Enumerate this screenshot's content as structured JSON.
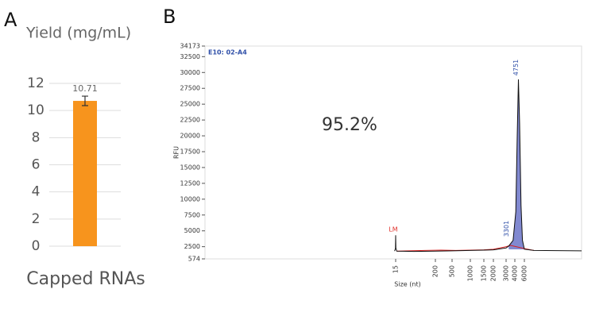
{
  "chart_data": [
    {
      "type": "bar",
      "panel": "A",
      "title": "Yield (mg/mL)",
      "categories": [
        "Capped RNAs"
      ],
      "values": [
        10.71
      ],
      "errors": [
        0.35
      ],
      "value_labels": [
        "10.71"
      ],
      "color": "#f7941d",
      "ylim": [
        0,
        12
      ],
      "yticks": [
        0,
        2,
        4,
        6,
        8,
        10,
        12
      ],
      "grid": true
    },
    {
      "type": "line",
      "panel": "B",
      "sample": "E10: 02-A4",
      "annotation": "95.2%",
      "xlabel": "Size (nt)",
      "ylabel": "RFU",
      "xticks": [
        15,
        200,
        500,
        1000,
        1500,
        2000,
        3000,
        4000,
        6000
      ],
      "ylim": [
        574,
        34173
      ],
      "yticks": [
        574,
        2500,
        5000,
        7500,
        10000,
        12500,
        15000,
        17500,
        20000,
        22500,
        25000,
        27500,
        30000,
        32500,
        34173
      ],
      "peak_labels": [
        {
          "x": 15,
          "label": "LM",
          "color": "#e0312b"
        },
        {
          "x": 3301,
          "label": "3301",
          "color": "#2f4fa8"
        },
        {
          "x": 4751,
          "label": "4751",
          "color": "#2f4fa8"
        }
      ],
      "series": [
        {
          "color": "#6b74c8",
          "area": true,
          "x": [
            3301,
            3800,
            4200,
            4500,
            4751,
            5000,
            5300,
            5600,
            6000
          ],
          "values": [
            2600,
            3500,
            8000,
            20000,
            28900,
            22000,
            9000,
            3500,
            2100
          ]
        },
        {
          "color": "#d62020",
          "x": [
            20,
            150,
            300,
            600,
            1000,
            1500,
            2000,
            3000,
            3500,
            6000,
            8000
          ],
          "values": [
            1800,
            1900,
            1950,
            1900,
            1950,
            2000,
            2100,
            2500,
            2700,
            2200,
            1900
          ]
        },
        {
          "color": "#111111",
          "x": [
            10,
            14,
            15,
            16,
            20,
            100,
            200,
            500,
            1000,
            1500,
            2000,
            3000,
            3301,
            3800,
            4200,
            4500,
            4751,
            5000,
            5300,
            5600,
            6000,
            8000,
            18000
          ],
          "values": [
            1800,
            2200,
            4300,
            2300,
            1800,
            1750,
            1800,
            1850,
            1900,
            1950,
            2000,
            2300,
            2600,
            3500,
            8000,
            20000,
            28900,
            22000,
            9000,
            3500,
            2100,
            1900,
            1850
          ]
        }
      ]
    }
  ]
}
